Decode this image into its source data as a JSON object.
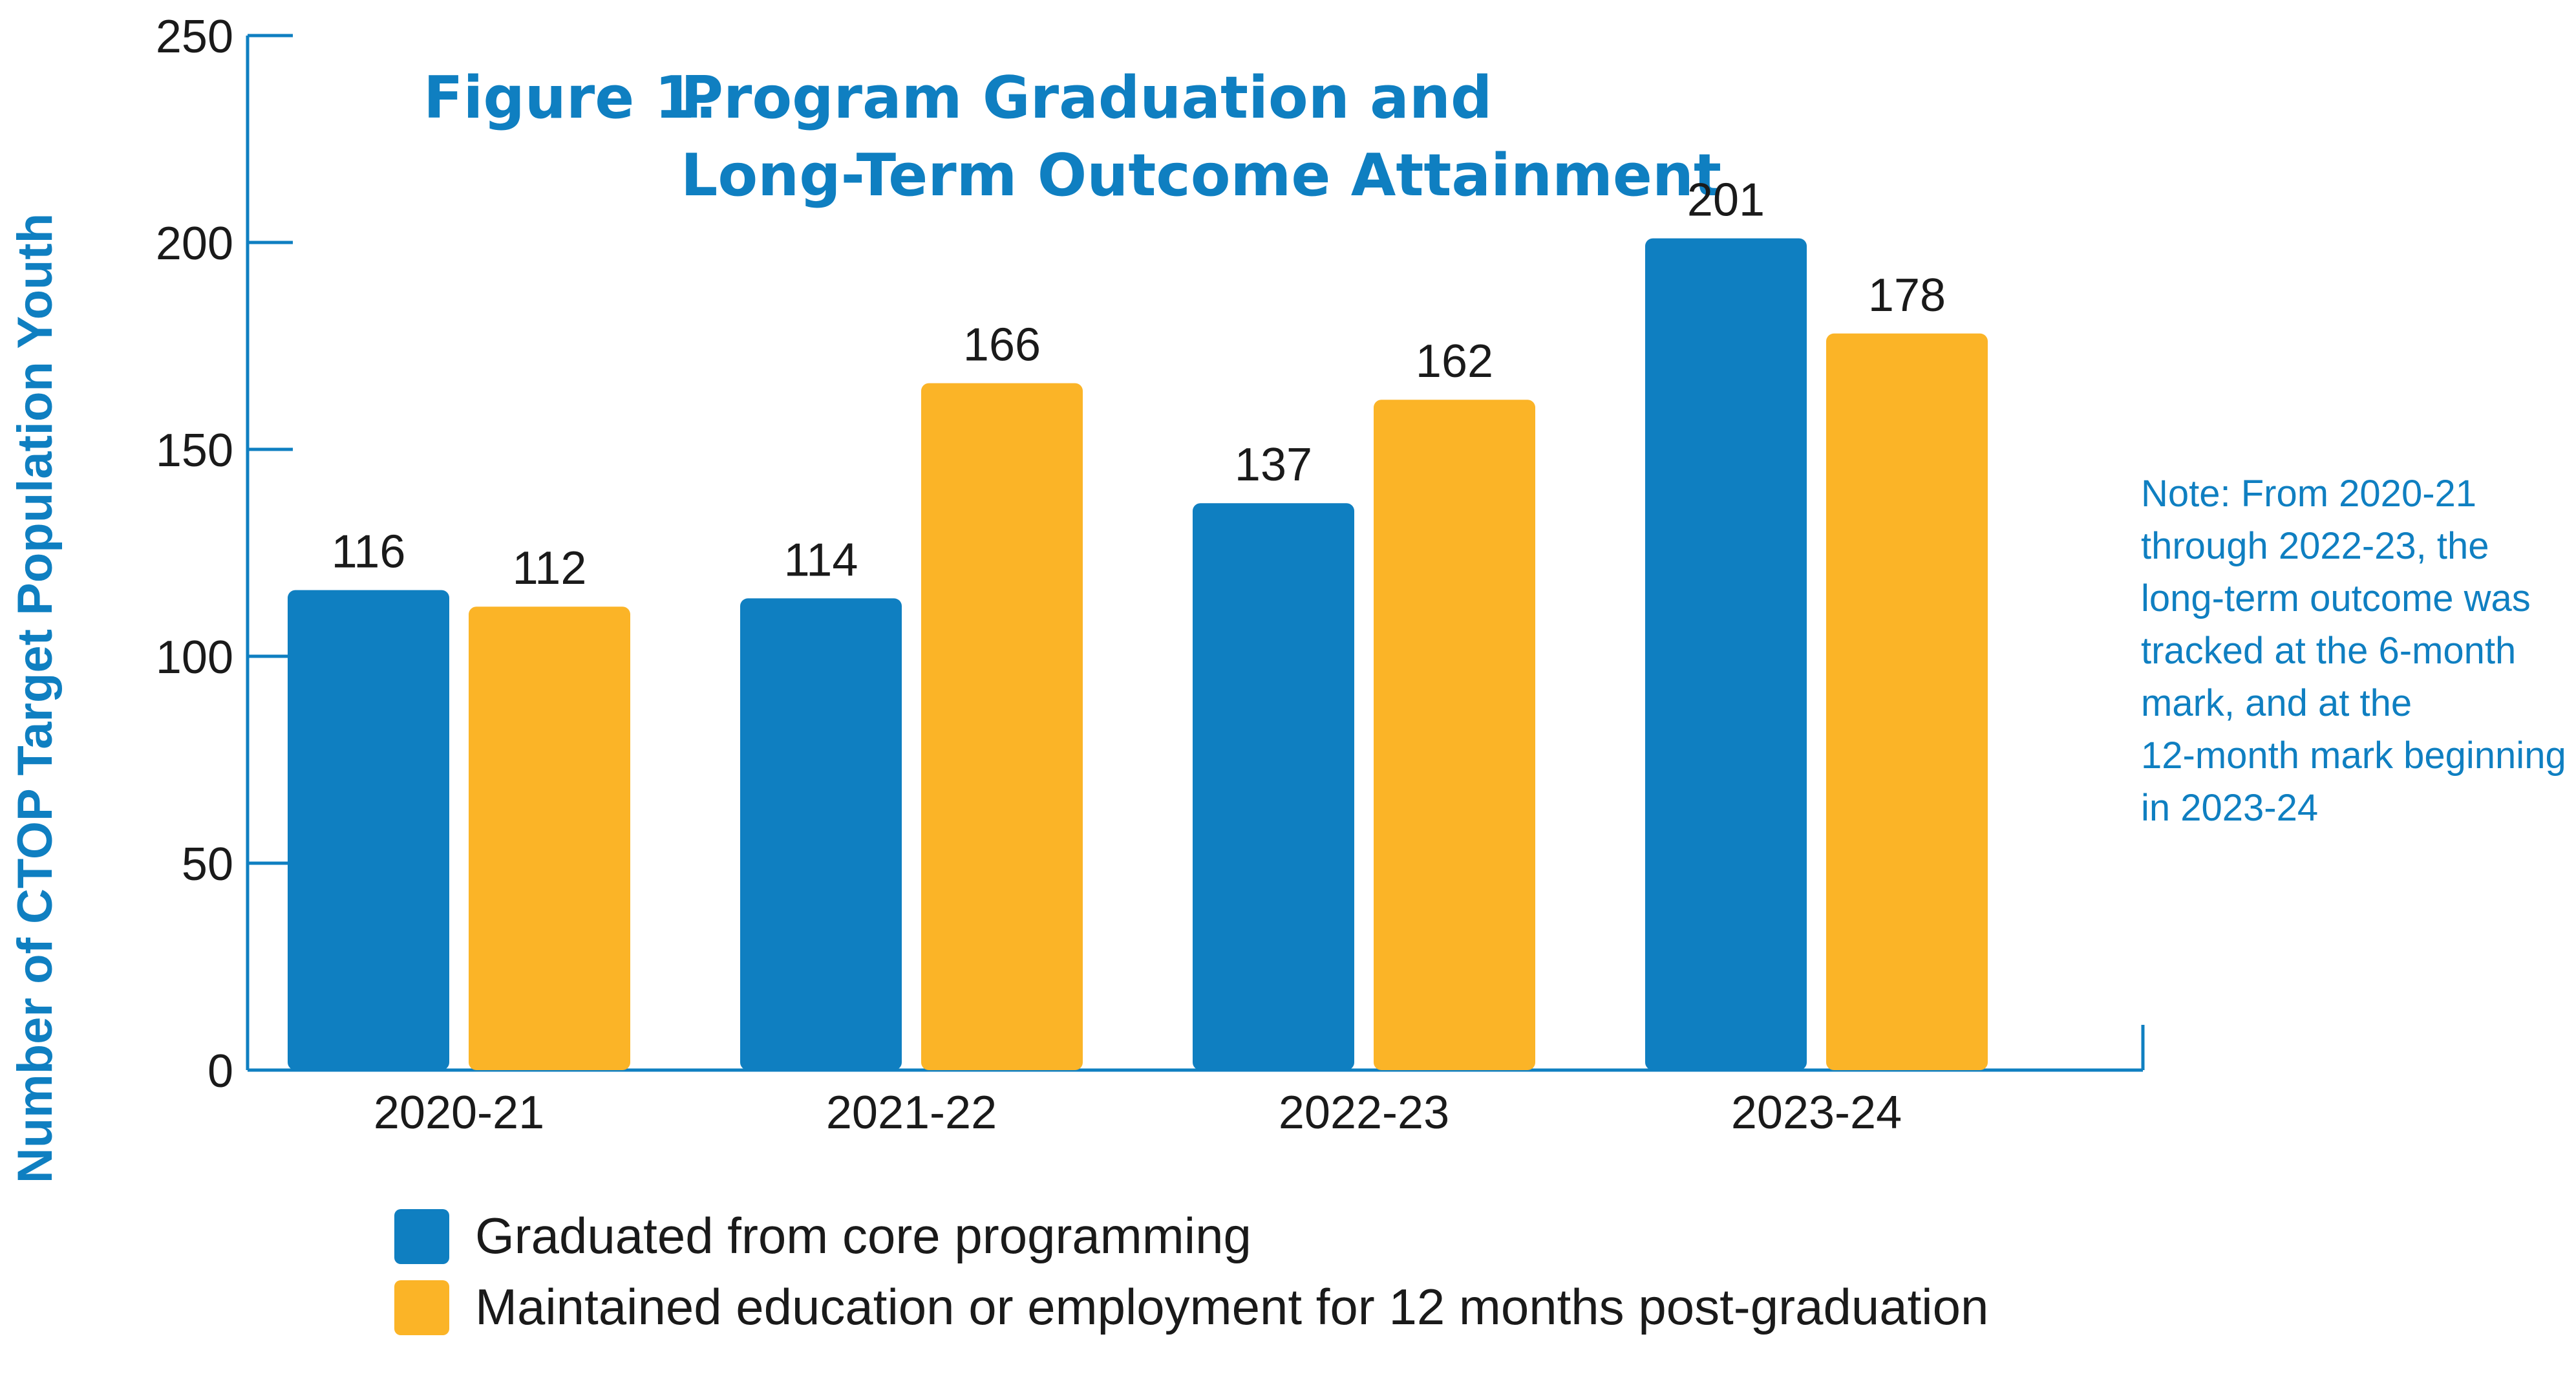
{
  "colors": {
    "accent": "#0F7FC1",
    "series_blue": "#0F7FC1",
    "series_gold": "#FBB427",
    "text": "#1a1a1a",
    "axis": "#0F7FC1"
  },
  "title": {
    "prefix": "Figure 1.",
    "line1": "Program Graduation and",
    "line2": "Long-Term Outcome Attainment"
  },
  "note": {
    "lines": [
      "Note: From 2020-21",
      "through 2022-23, the",
      "long-term outcome was",
      "tracked at the 6-month",
      "mark, and at the",
      "12-month mark beginning",
      "in 2023-24"
    ]
  },
  "chart_data": {
    "type": "bar",
    "title": "Figure 1. Program Graduation and Long-Term Outcome Attainment",
    "xlabel": "",
    "ylabel": "Number of CTOP Target Population Youth",
    "ylim": [
      0,
      250
    ],
    "yticks": [
      "0",
      "50",
      "100",
      "150",
      "200",
      "250"
    ],
    "categories": [
      "2020-21",
      "2021-22",
      "2022-23",
      "2023-24"
    ],
    "series": [
      {
        "name": "Graduated from core programming",
        "color": "#0F7FC1",
        "values": [
          116,
          114,
          137,
          201
        ]
      },
      {
        "name": "Maintained education or employment for 12 months post-graduation",
        "color": "#FBB427",
        "values": [
          112,
          166,
          162,
          178
        ]
      }
    ],
    "grid": false,
    "legend_position": "bottom-left"
  }
}
